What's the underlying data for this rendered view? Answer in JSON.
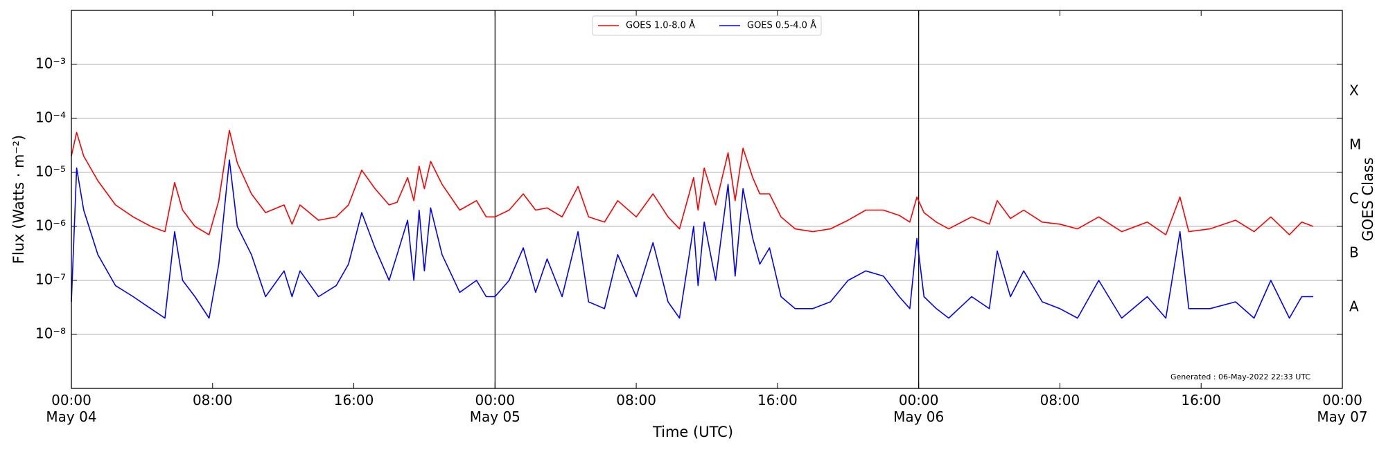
{
  "chart_data": {
    "type": "line",
    "xlabel": "Time (UTC)",
    "ylabel": "Flux (Watts · m⁻²)",
    "y2label": "GOES Class",
    "annotation": "Generated : 06-May-2022 22:33 UTC",
    "log_y": true,
    "grid": true,
    "legend": "upper center",
    "xlim": [
      0,
      72
    ],
    "xticks": [
      {
        "value": 0,
        "label": "00:00\nMay 04"
      },
      {
        "value": 8,
        "label": "08:00"
      },
      {
        "value": 16,
        "label": "16:00"
      },
      {
        "value": 24,
        "label": "00:00\nMay 05"
      },
      {
        "value": 32,
        "label": "08:00"
      },
      {
        "value": 40,
        "label": "16:00"
      },
      {
        "value": 48,
        "label": "00:00\nMay 06"
      },
      {
        "value": 56,
        "label": "08:00"
      },
      {
        "value": 64,
        "label": "16:00"
      },
      {
        "value": 72,
        "label": "00:00\nMay 07"
      }
    ],
    "day_separators": [
      24,
      48
    ],
    "ylim": [
      1e-09,
      0.01
    ],
    "yticks": [
      {
        "value": 1e-08,
        "label": "10⁻⁸"
      },
      {
        "value": 1e-07,
        "label": "10⁻⁷"
      },
      {
        "value": 1e-06,
        "label": "10⁻⁶"
      },
      {
        "value": 1e-05,
        "label": "10⁻⁵"
      },
      {
        "value": 0.0001,
        "label": "10⁻⁴"
      },
      {
        "value": 0.001,
        "label": "10⁻³"
      }
    ],
    "goes_classes": {
      "labels": [
        "A",
        "B",
        "C",
        "M",
        "X"
      ],
      "thresholds": [
        1e-08,
        1e-07,
        1e-06,
        1e-05,
        0.0001
      ]
    },
    "x": [
      0,
      0.3,
      0.7,
      1.5,
      2.5,
      3.5,
      4.5,
      5.3,
      5.85,
      6.3,
      7,
      7.8,
      8.35,
      8.95,
      9.4,
      10.2,
      11,
      12.05,
      12.5,
      12.95,
      14,
      15,
      15.7,
      16.45,
      17.2,
      18,
      18.45,
      19.05,
      19.4,
      19.7,
      20,
      20.35,
      21,
      22,
      22.95,
      23.5,
      24,
      24.8,
      25.6,
      26.3,
      26.95,
      27.8,
      28.7,
      29.3,
      30.2,
      30.95,
      32,
      32.95,
      33.8,
      34.45,
      35.25,
      35.5,
      35.85,
      36.5,
      37.2,
      37.6,
      38.05,
      38.6,
      39,
      39.55,
      40.2,
      41,
      42,
      43,
      44,
      45,
      46,
      46.9,
      47.5,
      47.9,
      48.3,
      49,
      49.7,
      51,
      52,
      52.45,
      53.2,
      53.95,
      55,
      56,
      57,
      58.2,
      59.5,
      60.95,
      62,
      62.8,
      63.3,
      64.5,
      65.95,
      67,
      67.95,
      69,
      69.7,
      70.35
    ],
    "series": [
      {
        "name": "GOES 1.0-8.0 Å",
        "color": "#ff0000",
        "values": [
          2e-05,
          5.5e-05,
          2e-05,
          7e-06,
          2.5e-06,
          1.5e-06,
          1e-06,
          8e-07,
          6.5e-06,
          2e-06,
          1e-06,
          7e-07,
          3e-06,
          6e-05,
          1.5e-05,
          4e-06,
          1.8e-06,
          2.5e-06,
          1.1e-06,
          2.5e-06,
          1.3e-06,
          1.5e-06,
          2.5e-06,
          1.1e-05,
          5e-06,
          2.5e-06,
          2.8e-06,
          8e-06,
          3e-06,
          1.3e-05,
          5e-06,
          1.6e-05,
          6e-06,
          2e-06,
          3e-06,
          1.5e-06,
          1.5e-06,
          2e-06,
          4e-06,
          2e-06,
          2.2e-06,
          1.5e-06,
          5.5e-06,
          1.5e-06,
          1.2e-06,
          3e-06,
          1.5e-06,
          4e-06,
          1.5e-06,
          9e-07,
          8e-06,
          2e-06,
          1.2e-05,
          2.5e-06,
          2.3e-05,
          3e-06,
          2.8e-05,
          8e-06,
          4e-06,
          4e-06,
          1.5e-06,
          9e-07,
          8e-07,
          9e-07,
          1.3e-06,
          2e-06,
          2e-06,
          1.6e-06,
          1.2e-06,
          3.5e-06,
          1.8e-06,
          1.2e-06,
          9e-07,
          1.5e-06,
          1.1e-06,
          3e-06,
          1.4e-06,
          2e-06,
          1.2e-06,
          1.1e-06,
          9e-07,
          1.5e-06,
          8e-07,
          1.2e-06,
          7e-07,
          3.5e-06,
          8e-07,
          9e-07,
          1.3e-06,
          8e-07,
          1.5e-06,
          7e-07,
          1.2e-06,
          1e-06
        ]
      },
      {
        "name": "GOES 0.5-4.0 Å",
        "color": "#0000ff",
        "values": [
          4e-08,
          1.2e-05,
          2e-06,
          3e-07,
          8e-08,
          5e-08,
          3e-08,
          2e-08,
          8e-07,
          1e-07,
          5e-08,
          2e-08,
          2e-07,
          1.7e-05,
          1e-06,
          3e-07,
          5e-08,
          1.5e-07,
          5e-08,
          1.5e-07,
          5e-08,
          8e-08,
          2e-07,
          1.8e-06,
          4e-07,
          1e-07,
          3e-07,
          1.3e-06,
          1e-07,
          2e-06,
          1.5e-07,
          2.2e-06,
          3e-07,
          6e-08,
          1e-07,
          5e-08,
          5e-08,
          1e-07,
          4e-07,
          6e-08,
          2.5e-07,
          5e-08,
          8e-07,
          4e-08,
          3e-08,
          3e-07,
          5e-08,
          5e-07,
          4e-08,
          2e-08,
          1e-06,
          8e-08,
          1.2e-06,
          1e-07,
          6e-06,
          1.2e-07,
          5e-06,
          6e-07,
          2e-07,
          4e-07,
          5e-08,
          3e-08,
          3e-08,
          4e-08,
          1e-07,
          1.5e-07,
          1.2e-07,
          5e-08,
          3e-08,
          6e-07,
          5e-08,
          3e-08,
          2e-08,
          5e-08,
          3e-08,
          3.5e-07,
          5e-08,
          1.5e-07,
          4e-08,
          3e-08,
          2e-08,
          1e-07,
          2e-08,
          5e-08,
          2e-08,
          8e-07,
          3e-08,
          3e-08,
          4e-08,
          2e-08,
          1e-07,
          2e-08,
          5e-08,
          5e-08
        ]
      }
    ]
  }
}
